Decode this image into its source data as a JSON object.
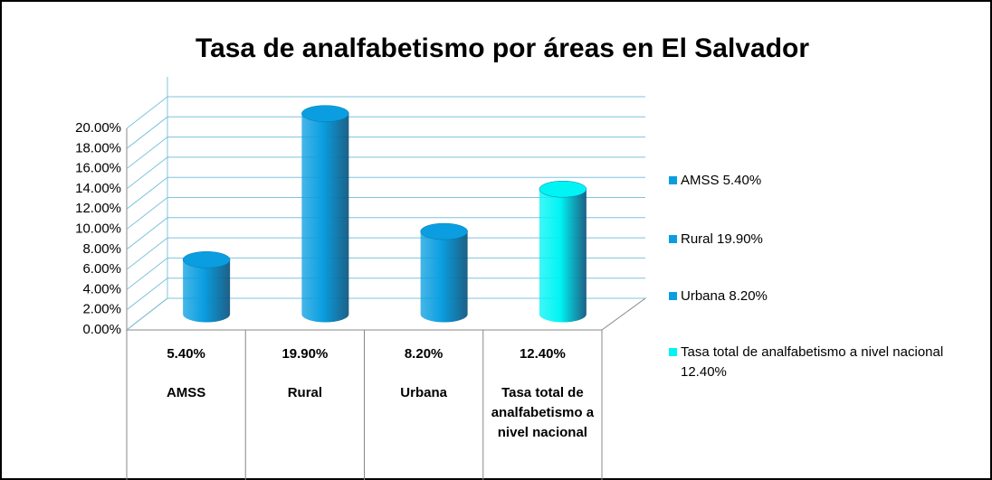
{
  "chart_data": {
    "type": "bar3d",
    "title": "Tasa de analfabetismo por áreas en El Salvador",
    "categories": [
      "AMSS",
      "Rural",
      "Urbana",
      "Tasa total de analfabetismo a nivel nacional"
    ],
    "values": [
      5.4,
      19.9,
      8.2,
      12.4
    ],
    "value_labels": [
      "5.40%",
      "19.90%",
      "8.20%",
      "12.40%"
    ],
    "colors": [
      "#0a9ee0",
      "#0a9ee0",
      "#0a9ee0",
      "#00f4f4"
    ],
    "legend": [
      "AMSS 5.40%",
      "Rural 19.90%",
      "Urbana 8.20%",
      "Tasa total de analfabetismo a nivel nacional 12.40%"
    ],
    "ylim": [
      0,
      20
    ],
    "yticks": [
      {
        "value": 0,
        "label": "0.00%"
      },
      {
        "value": 2,
        "label": "2.00%"
      },
      {
        "value": 4,
        "label": "4.00%"
      },
      {
        "value": 6,
        "label": "6.00%"
      },
      {
        "value": 8,
        "label": "8.00%"
      },
      {
        "value": 10,
        "label": "10.00%"
      },
      {
        "value": 12,
        "label": "12.00%"
      },
      {
        "value": 14,
        "label": "14.00%"
      },
      {
        "value": 16,
        "label": "16.00%"
      },
      {
        "value": 18,
        "label": "18.00%"
      },
      {
        "value": 20,
        "label": "20.00%"
      }
    ],
    "grid": true,
    "legend_position": "right"
  }
}
